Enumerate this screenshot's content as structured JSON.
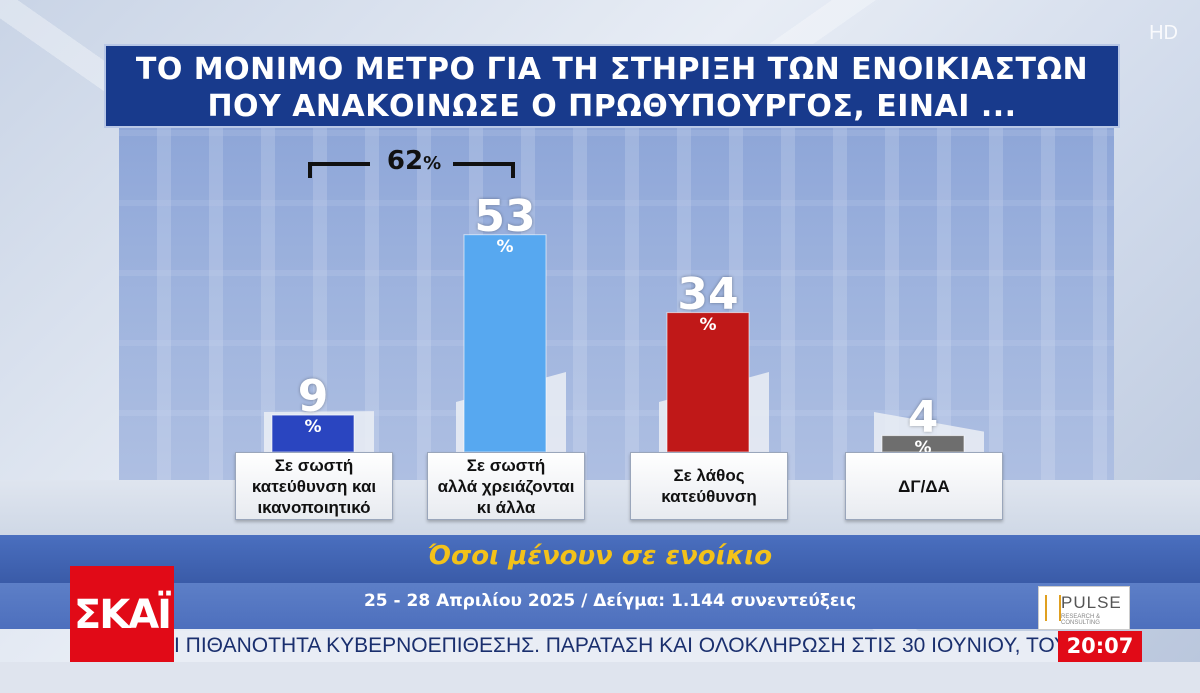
{
  "title_lines": [
    "ΤΟ ΜΟΝΙΜΟ ΜΕΤΡΟ ΓΙΑ ΤΗ ΣΤΗΡΙΞΗ ΤΩΝ ΕΝΟΙΚΙΑΣΤΩΝ",
    "ΠΟΥ ΑΝΑΚΟΙΝΩΣΕ Ο ΠΡΩΘΥΠΟΥΡΓΟΣ, ΕΙΝΑΙ ..."
  ],
  "hd_label": "HD",
  "chart_data": {
    "type": "bar",
    "title": "ΤΟ ΜΟΝΙΜΟ ΜΕΤΡΟ ΓΙΑ ΤΗ ΣΤΗΡΙΞΗ ΤΩΝ ΕΝΟΙΚΙΑΣΤΩΝ ΠΟΥ ΑΝΑΚΟΙΝΩΣΕ Ο ΠΡΩΘΥΠΟΥΡΓΟΣ, ΕΙΝΑΙ ...",
    "categories": [
      "Σε σωστή\nκατεύθυνση και\nικανοποιητικό",
      "Σε σωστή\nαλλά χρειάζονται\nκι άλλα",
      "Σε λάθος\nκατεύθυνση",
      "ΔΓ/ΔΑ"
    ],
    "values": [
      9,
      53,
      34,
      4
    ],
    "value_labels": [
      "9",
      "53",
      "34",
      "4"
    ],
    "unit": "%",
    "colors": [
      "#2a45c0",
      "#57a8f0",
      "#c01818",
      "#6e6e6e"
    ],
    "ylim": [
      0,
      60
    ],
    "annotation": {
      "label": "62",
      "unit": "%",
      "spans": [
        0,
        1
      ]
    }
  },
  "subtitle": "Όσοι μένουν σε ενοίκιο",
  "info": "25 - 28 Απριλίου 2025 / Δείγμα: 1.144 συνεντεύξεις",
  "channel_logo": "ΣΚΑΪ",
  "pollster": {
    "name": "PULSE",
    "tagline": "RESEARCH & CONSULTING"
  },
  "ticker": "Ι ΠΙΘΑΝΟΤΗΤΑ ΚΥΒΕΡΝΟΕΠΙΘΕΣΗΣ.   ΠΑΡΑΤΑΣΗ ΚΑΙ ΟΛΟΚΛΗΡΩΣΗ ΣΤΙΣ 30 ΙΟΥΝΙΟΥ, ΤΟΥ ΜΕΤ",
  "clock": "20:07"
}
